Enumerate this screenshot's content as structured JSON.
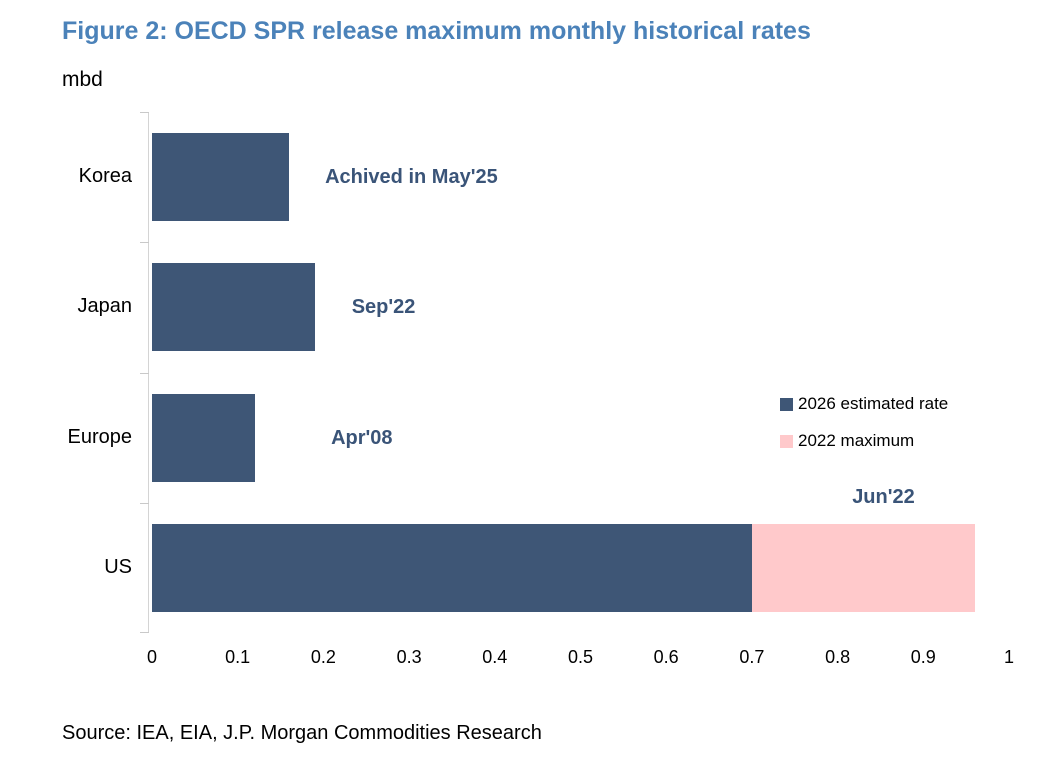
{
  "figure": {
    "title": "Figure 2: OECD SPR release maximum monthly historical rates",
    "unit_label": "mbd",
    "source": "Source: IEA, EIA, J.P. Morgan Commodities Research"
  },
  "colors": {
    "title": "#4b82b9",
    "bar_estimated": "#3e5676",
    "bar_maximum": "#ffc9cb",
    "annotation": "#3a5478",
    "axis": "#d4d4d4",
    "text": "#000000"
  },
  "chart_data": {
    "type": "bar",
    "orientation": "horizontal",
    "title": "Figure 2: OECD SPR release maximum monthly historical rates",
    "xlabel": "",
    "ylabel": "mbd",
    "categories": [
      "Korea",
      "Japan",
      "Europe",
      "US"
    ],
    "series": [
      {
        "name": "2026 estimated rate",
        "color": "#3e5676",
        "values": [
          0.16,
          0.19,
          0.12,
          0.7
        ]
      },
      {
        "name": "2022 maximum",
        "color": "#ffc9cb",
        "values": [
          null,
          null,
          null,
          0.96
        ]
      }
    ],
    "annotations": [
      {
        "text": "Achived in May'25",
        "category": "Korea",
        "x": 0.202,
        "placement": "middle"
      },
      {
        "text": "Sep'22",
        "category": "Japan",
        "x": 0.233,
        "placement": "middle"
      },
      {
        "text": "Apr'08",
        "category": "Europe",
        "x": 0.209,
        "placement": "middle"
      },
      {
        "text": "Jun'22",
        "category": "US",
        "x": 0.817,
        "placement": "above"
      }
    ],
    "xlim": [
      0,
      1
    ],
    "xticks": [
      0,
      0.1,
      0.2,
      0.3,
      0.4,
      0.5,
      0.6,
      0.7,
      0.8,
      0.9,
      1
    ],
    "grid": false,
    "legend_position": "right-middle"
  }
}
